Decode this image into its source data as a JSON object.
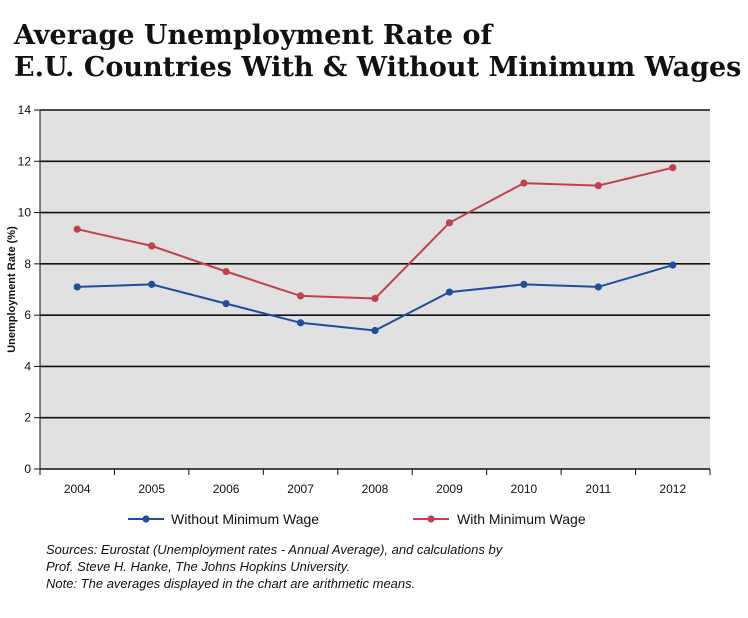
{
  "chart_data": {
    "type": "line",
    "title": "Average Unemployment Rate of E.U. Countries With & Without Minimum Wages",
    "title_lines": [
      "Average Unemployment Rate of",
      "E.U. Countries With & Without Minimum Wages"
    ],
    "xlabel": "",
    "ylabel": "Unemployment Rate (%)",
    "x": [
      "2004",
      "2005",
      "2006",
      "2007",
      "2008",
      "2009",
      "2010",
      "2011",
      "2012"
    ],
    "ylim": [
      0,
      14
    ],
    "yticks": [
      0,
      2,
      4,
      6,
      8,
      10,
      12,
      14
    ],
    "grid": true,
    "legend": "bottom",
    "series": [
      {
        "name": "Without Minimum Wage",
        "color": "#1f4e9c",
        "values": [
          7.1,
          7.2,
          6.45,
          5.7,
          5.4,
          6.9,
          7.2,
          7.1,
          7.95
        ]
      },
      {
        "name": "With Minimum Wage",
        "color": "#c0404f",
        "values": [
          9.35,
          8.7,
          7.7,
          6.75,
          6.65,
          9.6,
          11.15,
          11.05,
          11.75
        ]
      }
    ],
    "colors": {
      "plot_background": "#e1e1e1",
      "grid": "#111111"
    }
  },
  "notes": [
    "Sources: Eurostat (Unemployment rates - Annual Average), and calculations by",
    "Prof. Steve H. Hanke, The Johns Hopkins University.",
    "Note: The averages displayed in the chart are arithmetic means."
  ]
}
